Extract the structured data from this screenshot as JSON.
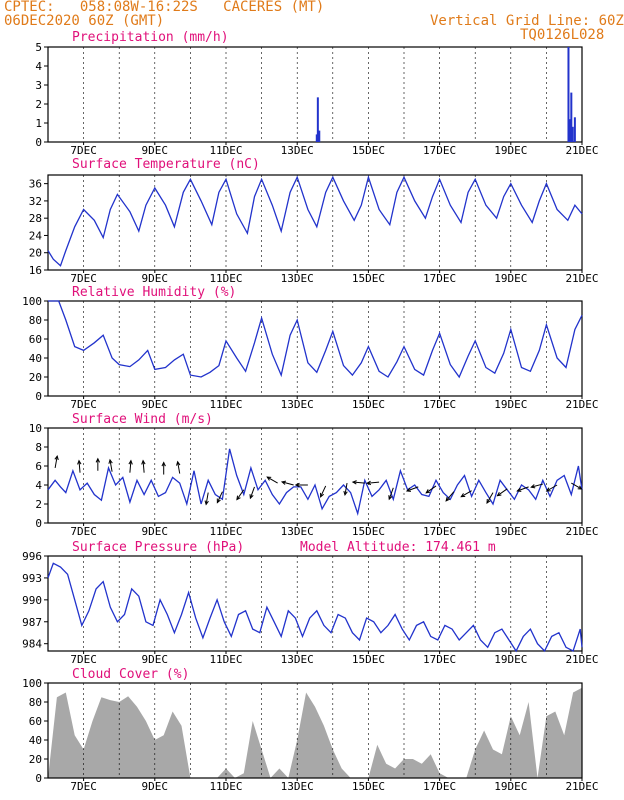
{
  "header": {
    "line1": "CPTEC:   058:08W-16:22S   CACERES (MT)",
    "line2": "06DEC2020 60Z (GMT)",
    "grid_note": "Vertical Grid Line: 60Z",
    "code": "TQ0126L028"
  },
  "colors": {
    "header": "#e07b1a",
    "title": "#e0107a",
    "line": "#2233cc",
    "fill": "#a8a8a8",
    "grid": "#000000",
    "arrow": "#000000"
  },
  "chart_data": [
    {
      "type": "bar",
      "title": "Precipitation (mm/h)",
      "ylim": [
        0,
        5
      ],
      "yticks": [
        0,
        1,
        2,
        3,
        4,
        5
      ],
      "xlim": [
        6.0,
        21.0
      ],
      "xtick_labels": [
        "7DEC",
        "9DEC",
        "11DEC",
        "13DEC",
        "15DEC",
        "17DEC",
        "19DEC",
        "21DEC"
      ],
      "xtick_days": [
        7,
        9,
        11,
        13,
        15,
        17,
        19,
        21
      ],
      "bars": [
        {
          "x": 13.55,
          "y": 0.4
        },
        {
          "x": 13.58,
          "y": 2.35
        },
        {
          "x": 13.62,
          "y": 0.6
        },
        {
          "x": 20.62,
          "y": 5.0
        },
        {
          "x": 20.66,
          "y": 1.2
        },
        {
          "x": 20.7,
          "y": 2.6
        },
        {
          "x": 20.74,
          "y": 0.8
        },
        {
          "x": 20.8,
          "y": 1.3
        }
      ]
    },
    {
      "type": "line",
      "title": "Surface Temperature (nC)",
      "ylim": [
        16,
        38
      ],
      "yticks": [
        16,
        20,
        24,
        28,
        32,
        36
      ],
      "xlim": [
        6.0,
        21.0
      ],
      "xtick_labels": [
        "7DEC",
        "9DEC",
        "11DEC",
        "13DEC",
        "15DEC",
        "17DEC",
        "19DEC",
        "21DEC"
      ],
      "xtick_days": [
        7,
        9,
        11,
        13,
        15,
        17,
        19,
        21
      ],
      "x": [
        6.0,
        6.15,
        6.35,
        6.5,
        6.75,
        7.0,
        7.3,
        7.55,
        7.75,
        7.95,
        8.3,
        8.55,
        8.75,
        9.0,
        9.3,
        9.55,
        9.8,
        10.0,
        10.3,
        10.6,
        10.8,
        11.0,
        11.3,
        11.6,
        11.8,
        12.0,
        12.3,
        12.55,
        12.8,
        13.0,
        13.3,
        13.55,
        13.8,
        14.0,
        14.3,
        14.6,
        14.8,
        15.0,
        15.3,
        15.6,
        15.8,
        16.0,
        16.3,
        16.6,
        16.8,
        17.0,
        17.3,
        17.6,
        17.8,
        18.0,
        18.3,
        18.6,
        18.8,
        19.0,
        19.3,
        19.6,
        19.8,
        20.0,
        20.3,
        20.6,
        20.8,
        21.0
      ],
      "y": [
        20.5,
        18.5,
        17,
        20.5,
        26,
        30,
        27.5,
        23.5,
        30,
        33.5,
        29.5,
        25,
        31,
        35,
        31,
        26,
        34,
        37,
        32,
        26.5,
        34,
        37,
        29,
        24.5,
        33,
        37,
        31,
        25,
        34,
        37.5,
        30,
        26,
        34,
        37.5,
        32,
        27.5,
        31,
        37.5,
        30,
        26.5,
        34,
        37.5,
        32,
        28,
        33,
        37,
        31,
        27,
        34,
        37,
        31,
        28,
        33,
        36,
        31,
        27,
        32,
        36,
        30,
        27.5,
        31,
        29
      ]
    },
    {
      "type": "line",
      "title": "Relative Humidity (%)",
      "ylim": [
        0,
        100
      ],
      "yticks": [
        0,
        20,
        40,
        60,
        80,
        100
      ],
      "xlim": [
        6.0,
        21.0
      ],
      "xtick_labels": [
        "7DEC",
        "9DEC",
        "11DEC",
        "13DEC",
        "15DEC",
        "17DEC",
        "19DEC",
        "21DEC"
      ],
      "xtick_days": [
        7,
        9,
        11,
        13,
        15,
        17,
        19,
        21
      ],
      "x": [
        6.0,
        6.3,
        6.5,
        6.75,
        7.0,
        7.3,
        7.55,
        7.8,
        8.0,
        8.3,
        8.55,
        8.8,
        9.0,
        9.3,
        9.55,
        9.8,
        10.0,
        10.3,
        10.55,
        10.8,
        11.0,
        11.3,
        11.55,
        11.8,
        12.0,
        12.3,
        12.55,
        12.8,
        13.0,
        13.3,
        13.55,
        13.8,
        14.0,
        14.3,
        14.55,
        14.8,
        15.0,
        15.3,
        15.55,
        15.8,
        16.0,
        16.3,
        16.55,
        16.8,
        17.0,
        17.3,
        17.55,
        17.8,
        18.0,
        18.3,
        18.55,
        18.8,
        19.0,
        19.3,
        19.55,
        19.8,
        20.0,
        20.3,
        20.55,
        20.8,
        21.0
      ],
      "y": [
        100,
        100,
        80,
        52,
        48,
        56,
        64,
        40,
        33,
        31,
        38,
        48,
        28,
        30,
        38,
        44,
        22,
        20,
        25,
        32,
        58,
        40,
        26,
        56,
        82,
        44,
        22,
        64,
        80,
        35,
        25,
        48,
        68,
        32,
        22,
        35,
        52,
        26,
        20,
        36,
        52,
        28,
        22,
        48,
        66,
        33,
        20,
        42,
        58,
        30,
        24,
        45,
        70,
        30,
        26,
        48,
        75,
        40,
        30,
        70,
        85
      ]
    },
    {
      "type": "line",
      "title": "Surface Wind (m/s)",
      "ylim": [
        0,
        10
      ],
      "yticks": [
        0,
        2,
        4,
        6,
        8,
        10
      ],
      "xlim": [
        6.0,
        21.0
      ],
      "xtick_labels": [
        "7DEC",
        "9DEC",
        "11DEC",
        "13DEC",
        "15DEC",
        "17DEC",
        "19DEC",
        "21DEC"
      ],
      "xtick_days": [
        7,
        9,
        11,
        13,
        15,
        17,
        19,
        21
      ],
      "x": [
        6.0,
        6.2,
        6.35,
        6.5,
        6.7,
        6.9,
        7.1,
        7.3,
        7.5,
        7.7,
        7.9,
        8.1,
        8.3,
        8.5,
        8.7,
        8.9,
        9.1,
        9.3,
        9.5,
        9.7,
        9.9,
        10.1,
        10.3,
        10.5,
        10.7,
        10.9,
        11.1,
        11.3,
        11.5,
        11.7,
        11.9,
        12.1,
        12.3,
        12.5,
        12.7,
        12.9,
        13.1,
        13.3,
        13.5,
        13.7,
        13.9,
        14.1,
        14.3,
        14.5,
        14.7,
        14.9,
        15.1,
        15.3,
        15.5,
        15.7,
        15.9,
        16.1,
        16.3,
        16.5,
        16.7,
        16.9,
        17.1,
        17.3,
        17.5,
        17.7,
        17.9,
        18.1,
        18.3,
        18.5,
        18.7,
        18.9,
        19.1,
        19.3,
        19.5,
        19.7,
        19.9,
        20.1,
        20.3,
        20.5,
        20.7,
        20.9,
        21.0
      ],
      "y": [
        3.5,
        4.5,
        3.8,
        3.2,
        5.5,
        3.5,
        4.2,
        3.0,
        2.4,
        5.8,
        4.0,
        4.8,
        2.2,
        4.5,
        3.0,
        4.5,
        2.8,
        3.2,
        4.8,
        4.2,
        2.0,
        5.5,
        2.0,
        4.5,
        3.0,
        2.5,
        7.8,
        5.0,
        3.0,
        5.8,
        3.5,
        4.5,
        3.0,
        2.0,
        3.2,
        3.8,
        3.8,
        2.5,
        4.0,
        1.5,
        2.8,
        3.2,
        4.0,
        3.2,
        1.0,
        4.5,
        2.8,
        3.5,
        4.5,
        2.5,
        5.5,
        3.5,
        4.0,
        3.0,
        2.8,
        4.5,
        3.2,
        2.5,
        4.0,
        5.0,
        2.8,
        4.5,
        3.2,
        2.0,
        4.5,
        3.5,
        2.5,
        4.0,
        3.5,
        2.5,
        4.5,
        2.8,
        4.5,
        5.0,
        3.0,
        6.0,
        3.5
      ]
    },
    {
      "type": "line",
      "title": "Surface Pressure (hPa)",
      "annotation": "Model Altitude: 174.461 m",
      "ylim": [
        983,
        996
      ],
      "yticks": [
        984,
        987,
        990,
        993,
        996
      ],
      "xlim": [
        6.0,
        21.0
      ],
      "xtick_labels": [
        "7DEC",
        "9DEC",
        "11DEC",
        "13DEC",
        "15DEC",
        "17DEC",
        "19DEC",
        "21DEC"
      ],
      "xtick_days": [
        7,
        9,
        11,
        13,
        15,
        17,
        19,
        21
      ],
      "x": [
        6.0,
        6.15,
        6.35,
        6.55,
        6.75,
        6.95,
        7.15,
        7.35,
        7.55,
        7.75,
        7.95,
        8.15,
        8.35,
        8.55,
        8.75,
        8.95,
        9.15,
        9.35,
        9.55,
        9.75,
        9.95,
        10.15,
        10.35,
        10.55,
        10.75,
        10.95,
        11.15,
        11.35,
        11.55,
        11.75,
        11.95,
        12.15,
        12.35,
        12.55,
        12.75,
        12.95,
        13.15,
        13.35,
        13.55,
        13.75,
        13.95,
        14.15,
        14.35,
        14.55,
        14.75,
        14.95,
        15.15,
        15.35,
        15.55,
        15.75,
        15.95,
        16.15,
        16.35,
        16.55,
        16.75,
        16.95,
        17.15,
        17.35,
        17.55,
        17.75,
        17.95,
        18.15,
        18.35,
        18.55,
        18.75,
        18.95,
        19.15,
        19.35,
        19.55,
        19.75,
        19.95,
        20.15,
        20.35,
        20.55,
        20.75,
        20.95,
        21.0
      ],
      "y": [
        993,
        995,
        994.5,
        993.5,
        990,
        986.5,
        988.5,
        991.5,
        992.5,
        989,
        987,
        988,
        991.5,
        990.5,
        987,
        986.5,
        990,
        988,
        985.5,
        988,
        991,
        987.5,
        984.8,
        987.5,
        990,
        987,
        985,
        988,
        988.5,
        986,
        985.5,
        989,
        987,
        985,
        988.5,
        987.5,
        985,
        987.5,
        988.5,
        986.5,
        985.5,
        988,
        987.5,
        985.5,
        984.5,
        987.5,
        987,
        985.5,
        986.5,
        988,
        986,
        984.5,
        986.5,
        987,
        985,
        984.5,
        986.5,
        986,
        984.5,
        985.5,
        986.5,
        984.5,
        983.5,
        985.5,
        986,
        984.5,
        983,
        985,
        986,
        984,
        983,
        985,
        985.5,
        983.5,
        983,
        986,
        983.5
      ]
    },
    {
      "type": "area",
      "title": "Cloud Cover (%)",
      "ylim": [
        0,
        100
      ],
      "yticks": [
        0,
        20,
        40,
        60,
        80,
        100
      ],
      "xlim": [
        6.0,
        21.0
      ],
      "xtick_labels": [
        "7DEC",
        "9DEC",
        "11DEC",
        "13DEC",
        "15DEC",
        "17DEC",
        "19DEC",
        "21DEC"
      ],
      "xtick_days": [
        7,
        9,
        11,
        13,
        15,
        17,
        19,
        21
      ],
      "x": [
        6.0,
        6.25,
        6.5,
        6.75,
        7.0,
        7.25,
        7.5,
        7.75,
        8.0,
        8.25,
        8.5,
        8.75,
        9.0,
        9.25,
        9.5,
        9.75,
        10.0,
        10.25,
        10.5,
        10.75,
        11.0,
        11.25,
        11.5,
        11.75,
        12.0,
        12.25,
        12.5,
        12.75,
        13.0,
        13.25,
        13.5,
        13.75,
        14.0,
        14.25,
        14.5,
        14.75,
        15.0,
        15.25,
        15.5,
        15.75,
        16.0,
        16.25,
        16.5,
        16.75,
        17.0,
        17.25,
        17.5,
        17.75,
        18.0,
        18.25,
        18.5,
        18.75,
        19.0,
        19.25,
        19.5,
        19.75,
        20.0,
        20.25,
        20.5,
        20.75,
        21.0
      ],
      "y": [
        0,
        85,
        90,
        45,
        30,
        60,
        85,
        82,
        80,
        86,
        75,
        60,
        40,
        45,
        70,
        55,
        0,
        0,
        0,
        0,
        10,
        0,
        5,
        60,
        30,
        0,
        10,
        0,
        40,
        90,
        75,
        55,
        30,
        10,
        0,
        0,
        0,
        35,
        15,
        10,
        20,
        20,
        15,
        25,
        5,
        0,
        0,
        0,
        30,
        50,
        30,
        25,
        65,
        45,
        80,
        0,
        65,
        70,
        45,
        90,
        95
      ]
    },
    {
      "type": "vector",
      "title": "Surface Wind (m/s) arrows",
      "arrows": [
        {
          "x": 6.2,
          "y": 5.8,
          "angle": 80
        },
        {
          "x": 6.9,
          "y": 5.3,
          "angle": 95
        },
        {
          "x": 7.4,
          "y": 5.5,
          "angle": 90
        },
        {
          "x": 7.8,
          "y": 5.4,
          "angle": 100
        },
        {
          "x": 8.3,
          "y": 5.3,
          "angle": 85
        },
        {
          "x": 8.7,
          "y": 5.3,
          "angle": 95
        },
        {
          "x": 9.25,
          "y": 5.1,
          "angle": 90
        },
        {
          "x": 9.7,
          "y": 5.2,
          "angle": 100
        },
        {
          "x": 10.5,
          "y": 3.2,
          "angle": 260
        },
        {
          "x": 10.9,
          "y": 3.3,
          "angle": 245
        },
        {
          "x": 11.5,
          "y": 3.5,
          "angle": 235
        },
        {
          "x": 11.8,
          "y": 3.8,
          "angle": 250
        },
        {
          "x": 12.45,
          "y": 4.2,
          "angle": 150
        },
        {
          "x": 12.9,
          "y": 4.0,
          "angle": 165
        },
        {
          "x": 13.3,
          "y": 4.0,
          "angle": 180
        },
        {
          "x": 13.8,
          "y": 3.9,
          "angle": 245
        },
        {
          "x": 14.4,
          "y": 4.2,
          "angle": 260
        },
        {
          "x": 14.9,
          "y": 4.2,
          "angle": 175
        },
        {
          "x": 15.3,
          "y": 4.3,
          "angle": 185
        },
        {
          "x": 15.7,
          "y": 3.7,
          "angle": 250
        },
        {
          "x": 16.4,
          "y": 3.8,
          "angle": 200
        },
        {
          "x": 16.9,
          "y": 3.9,
          "angle": 215
        },
        {
          "x": 17.4,
          "y": 3.3,
          "angle": 230
        },
        {
          "x": 17.9,
          "y": 3.4,
          "angle": 210
        },
        {
          "x": 18.5,
          "y": 3.2,
          "angle": 240
        },
        {
          "x": 18.9,
          "y": 3.6,
          "angle": 215
        },
        {
          "x": 19.5,
          "y": 3.8,
          "angle": 200
        },
        {
          "x": 19.9,
          "y": 4.1,
          "angle": 195
        },
        {
          "x": 20.3,
          "y": 4.0,
          "angle": 210
        },
        {
          "x": 20.7,
          "y": 4.2,
          "angle": 330
        }
      ]
    }
  ]
}
